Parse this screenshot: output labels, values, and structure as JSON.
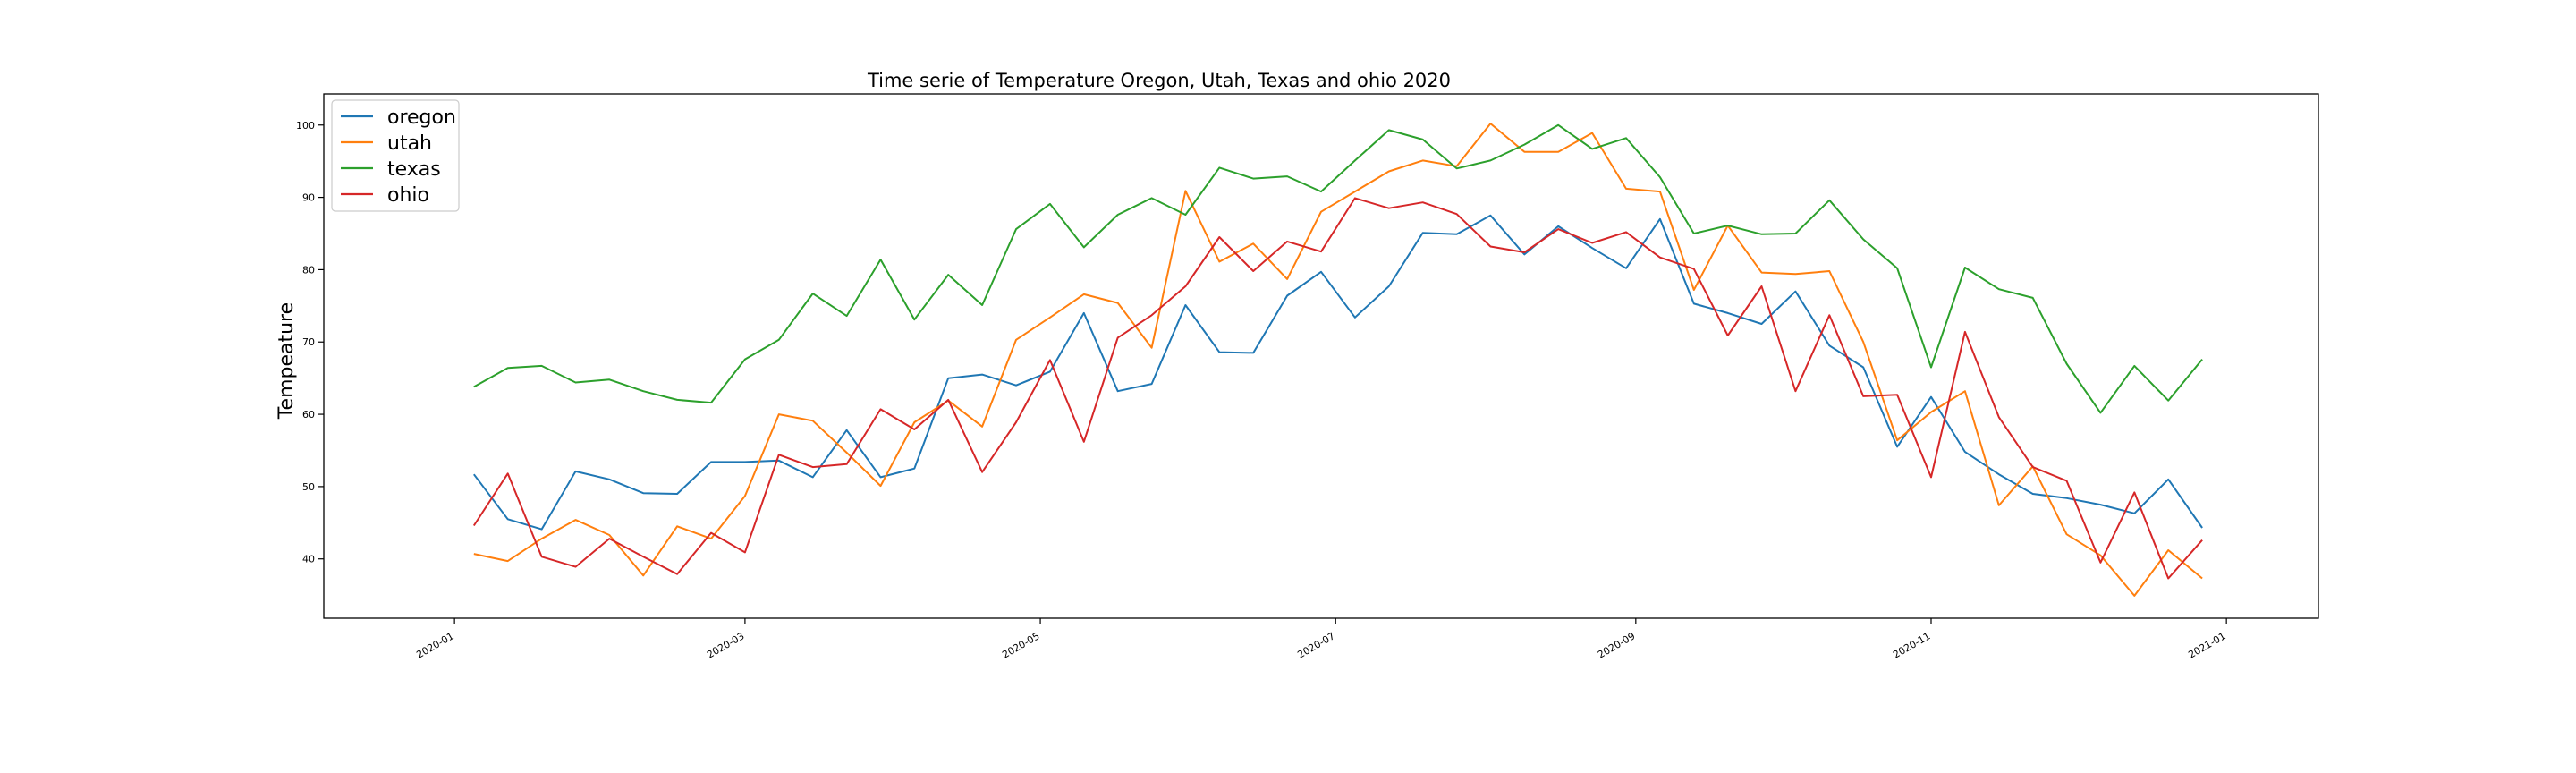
{
  "chart_data": {
    "type": "line",
    "title": "Time serie of Temperature Oregon, Utah, Texas and ohio 2020",
    "xlabel": "",
    "ylabel": "Tempeature",
    "xlim": [
      "2019-12-05",
      "2021-01-20"
    ],
    "ylim": [
      31.8,
      104.3
    ],
    "x_ticks": [
      "2020-01",
      "2020-03",
      "2020-05",
      "2020-07",
      "2020-09",
      "2020-11",
      "2021-01"
    ],
    "y_ticks": [
      40,
      50,
      60,
      70,
      80,
      90,
      100
    ],
    "grid": false,
    "legend_position": "top-left",
    "x": [
      "2020-01-05",
      "2020-01-12",
      "2020-01-19",
      "2020-01-26",
      "2020-02-02",
      "2020-02-09",
      "2020-02-16",
      "2020-02-23",
      "2020-03-01",
      "2020-03-08",
      "2020-03-15",
      "2020-03-22",
      "2020-03-29",
      "2020-04-05",
      "2020-04-12",
      "2020-04-19",
      "2020-04-26",
      "2020-05-03",
      "2020-05-10",
      "2020-05-17",
      "2020-05-24",
      "2020-05-31",
      "2020-06-07",
      "2020-06-14",
      "2020-06-21",
      "2020-06-28",
      "2020-07-05",
      "2020-07-12",
      "2020-07-19",
      "2020-07-26",
      "2020-08-02",
      "2020-08-09",
      "2020-08-16",
      "2020-08-23",
      "2020-08-30",
      "2020-09-06",
      "2020-09-13",
      "2020-09-20",
      "2020-09-27",
      "2020-10-04",
      "2020-10-11",
      "2020-10-18",
      "2020-10-25",
      "2020-11-01",
      "2020-11-08",
      "2020-11-15",
      "2020-11-22",
      "2020-11-29",
      "2020-12-06",
      "2020-12-13",
      "2020-12-20",
      "2020-12-27"
    ],
    "series": [
      {
        "name": "oregon",
        "color": "#1f77b4",
        "values": [
          51.7,
          45.5,
          44.1,
          52.1,
          51.0,
          49.1,
          49.0,
          53.4,
          53.4,
          53.6,
          51.3,
          57.8,
          51.3,
          52.5,
          65.0,
          65.5,
          64.0,
          65.9,
          74.0,
          63.2,
          64.2,
          75.1,
          68.6,
          68.5,
          76.4,
          79.7,
          73.4,
          77.7,
          85.1,
          84.9,
          87.5,
          82.1,
          86.0,
          83.0,
          80.2,
          87.0,
          75.3,
          74.0,
          72.5,
          77.0,
          69.5,
          66.5,
          55.5,
          62.4,
          54.8,
          51.7,
          49.0,
          48.4,
          47.5,
          46.3,
          51.0,
          44.3
        ]
      },
      {
        "name": "utah",
        "color": "#ff7f0e",
        "values": [
          40.7,
          39.7,
          42.8,
          45.4,
          43.3,
          37.7,
          44.5,
          42.8,
          48.7,
          60.0,
          59.1,
          54.7,
          50.1,
          58.9,
          61.9,
          58.3,
          70.3,
          73.4,
          76.6,
          75.4,
          69.2,
          90.9,
          81.1,
          83.6,
          78.7,
          88.0,
          90.8,
          93.6,
          95.1,
          94.3,
          100.2,
          96.3,
          96.3,
          98.9,
          91.2,
          90.8,
          77.2,
          86.1,
          79.6,
          79.4,
          79.8,
          70.0,
          56.4,
          60.3,
          63.2,
          47.4,
          52.8,
          43.4,
          40.5,
          34.9,
          41.2,
          37.3
        ]
      },
      {
        "name": "texas",
        "color": "#2ca02c",
        "values": [
          63.8,
          66.4,
          66.7,
          64.4,
          64.8,
          63.2,
          62.0,
          61.6,
          67.6,
          70.3,
          76.7,
          73.6,
          81.4,
          73.1,
          79.3,
          75.1,
          85.6,
          89.1,
          83.1,
          87.6,
          89.9,
          87.6,
          94.1,
          92.6,
          92.9,
          90.8,
          95.1,
          99.3,
          98.0,
          94.0,
          95.1,
          97.3,
          100.0,
          96.7,
          98.2,
          92.8,
          85.0,
          86.1,
          84.9,
          85.0,
          89.6,
          84.2,
          80.2,
          66.5,
          80.3,
          77.3,
          76.1,
          67.0,
          60.2,
          66.7,
          61.9,
          67.6
        ]
      },
      {
        "name": "ohio",
        "color": "#d62728",
        "values": [
          44.6,
          51.8,
          40.3,
          38.9,
          42.8,
          40.3,
          37.9,
          43.6,
          40.9,
          54.4,
          52.7,
          53.1,
          60.7,
          57.9,
          62.0,
          52.0,
          58.9,
          67.5,
          56.2,
          70.6,
          73.7,
          77.7,
          84.5,
          79.8,
          83.9,
          82.5,
          89.9,
          88.5,
          89.3,
          87.7,
          83.2,
          82.4,
          85.6,
          83.7,
          85.2,
          81.7,
          80.1,
          70.9,
          77.7,
          63.2,
          73.7,
          62.5,
          62.7,
          51.3,
          71.4,
          59.6,
          52.7,
          50.8,
          39.5,
          49.2,
          37.3,
          42.6
        ]
      }
    ]
  }
}
